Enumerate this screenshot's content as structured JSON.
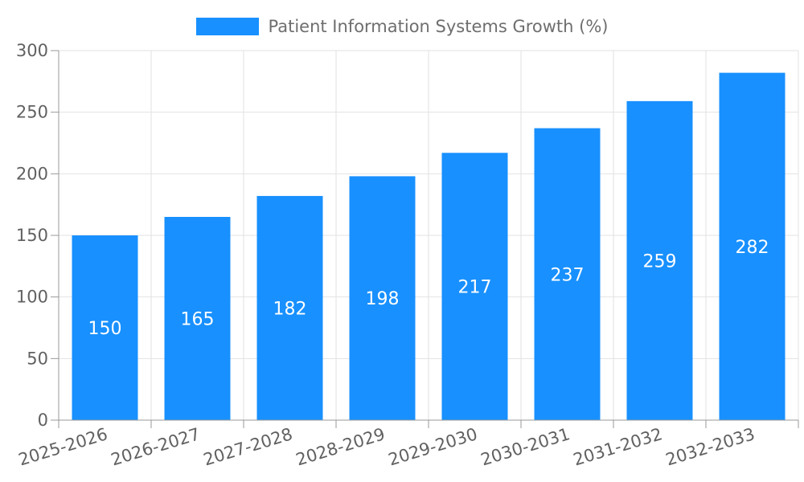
{
  "chart_data": {
    "type": "bar",
    "title": "",
    "legend": "Patient Information Systems Growth (%)",
    "legend_position": "top-center",
    "categories": [
      "2025-2026",
      "2026-2027",
      "2027-2028",
      "2028-2029",
      "2029-2030",
      "2030-2031",
      "2031-2032",
      "2032-2033"
    ],
    "series": [
      {
        "name": "Patient Information Systems Growth (%)",
        "values": [
          150,
          165,
          182,
          198,
          217,
          237,
          259,
          282
        ]
      }
    ],
    "xlabel": "",
    "ylabel": "",
    "ylim": [
      0,
      300
    ],
    "yticks": [
      0,
      50,
      100,
      150,
      200,
      250,
      300
    ],
    "grid": true,
    "x_label_rotation_deg": -17,
    "value_labels": "inside-middle",
    "colors": {
      "bar": "#1890ff",
      "value_label": "#ffffff",
      "grid_line": "#e2e2e2",
      "axis_line": "#999999",
      "tick_text": "#616161",
      "legend_text": "#6e6e6e",
      "background": "#ffffff"
    }
  }
}
